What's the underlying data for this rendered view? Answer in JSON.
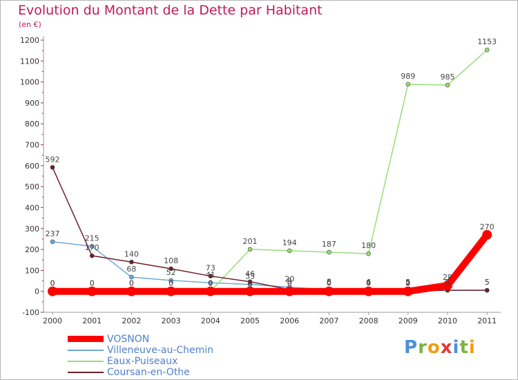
{
  "title": "Evolution du Montant de la Dette par Habitant",
  "unit_label": "(en €)",
  "logo": {
    "letters": [
      "P",
      "r",
      "o",
      "x",
      "i",
      "t",
      "i"
    ],
    "colors": [
      "#4a90d9",
      "#7cb342",
      "#f39c12",
      "#e53935",
      "#4a90d9",
      "#7cb342",
      "#f39c12"
    ]
  },
  "chart_data": {
    "type": "line",
    "x": [
      "2000",
      "2001",
      "2002",
      "2003",
      "2004",
      "2005",
      "2006",
      "2007",
      "2008",
      "2009",
      "2010",
      "2011"
    ],
    "yticks": [
      "-100",
      "0",
      "100",
      "200",
      "300",
      "400",
      "500",
      "600",
      "700",
      "800",
      "900",
      "1000",
      "1100",
      "1200"
    ],
    "ylim": [
      -100,
      1200
    ],
    "grid": false,
    "legend_position": "bottom-left",
    "series": [
      {
        "name": "VOSNON",
        "color": "#ff0000",
        "values": [
          0,
          0,
          0,
          0,
          0,
          0,
          0,
          0,
          0,
          0,
          28,
          270
        ]
      },
      {
        "name": "Villeneuve-au-Chemin",
        "color": "#6fa8dc",
        "values": [
          237,
          215,
          68,
          52,
          41,
          33,
          20,
          8,
          6,
          5,
          5,
          5
        ]
      },
      {
        "name": "Eaux-Puiseaux",
        "color": "#99dd77",
        "values": [
          0,
          0,
          0,
          0,
          0,
          201,
          194,
          187,
          180,
          989,
          985,
          1153
        ]
      },
      {
        "name": "Coursan-en-Othe",
        "color": "#6b1f2a",
        "values": [
          592,
          170,
          140,
          108,
          73,
          46,
          9,
          6,
          4,
          2,
          5,
          5
        ]
      }
    ]
  }
}
